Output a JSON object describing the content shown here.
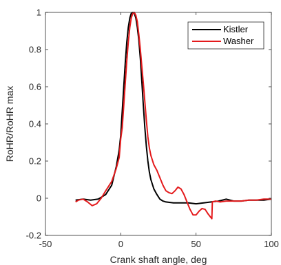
{
  "chart_data": {
    "type": "line",
    "xlabel": "Crank shaft angle, deg",
    "ylabel": "RoHR/RoHR max",
    "xlim": [
      -50,
      100
    ],
    "ylim": [
      -0.2,
      1
    ],
    "xticks": [
      -50,
      0,
      50,
      100
    ],
    "yticks": [
      -0.2,
      0,
      0.2,
      0.4,
      0.6,
      0.8,
      1
    ],
    "x_tick_labels": [
      "-50",
      "0",
      "50",
      "100"
    ],
    "y_tick_labels": [
      "-0.2",
      "0",
      "0.2",
      "0.4",
      "0.6",
      "0.8",
      "1"
    ],
    "grid": false,
    "legend_position": "top-right",
    "series": [
      {
        "name": "Kistler",
        "color": "#000000",
        "points": [
          [
            -30,
            -0.01
          ],
          [
            -25,
            -0.005
          ],
          [
            -20,
            -0.01
          ],
          [
            -15,
            -0.005
          ],
          [
            -10,
            0.02
          ],
          [
            -6,
            0.07
          ],
          [
            -3,
            0.17
          ],
          [
            -1,
            0.26
          ],
          [
            0,
            0.34
          ],
          [
            1,
            0.47
          ],
          [
            2,
            0.6
          ],
          [
            3,
            0.73
          ],
          [
            4,
            0.84
          ],
          [
            5,
            0.92
          ],
          [
            6,
            0.97
          ],
          [
            7,
            0.995
          ],
          [
            8,
            1.0
          ],
          [
            9,
            0.995
          ],
          [
            10,
            0.97
          ],
          [
            11,
            0.92
          ],
          [
            12,
            0.85
          ],
          [
            13,
            0.75
          ],
          [
            14,
            0.63
          ],
          [
            15,
            0.5
          ],
          [
            16,
            0.38
          ],
          [
            17,
            0.28
          ],
          [
            18,
            0.2
          ],
          [
            19,
            0.14
          ],
          [
            20,
            0.1
          ],
          [
            22,
            0.05
          ],
          [
            24,
            0.02
          ],
          [
            26,
            -0.005
          ],
          [
            28,
            -0.015
          ],
          [
            30,
            -0.02
          ],
          [
            35,
            -0.025
          ],
          [
            40,
            -0.025
          ],
          [
            45,
            -0.025
          ],
          [
            50,
            -0.03
          ],
          [
            55,
            -0.025
          ],
          [
            60,
            -0.02
          ],
          [
            65,
            -0.015
          ],
          [
            70,
            -0.005
          ],
          [
            75,
            -0.015
          ],
          [
            80,
            -0.015
          ],
          [
            85,
            -0.01
          ],
          [
            90,
            -0.01
          ],
          [
            95,
            -0.01
          ],
          [
            100,
            -0.005
          ]
        ]
      },
      {
        "name": "Washer",
        "color": "#e41a1c",
        "points": [
          [
            -30,
            -0.02
          ],
          [
            -28,
            -0.01
          ],
          [
            -25,
            -0.005
          ],
          [
            -22,
            -0.02
          ],
          [
            -19,
            -0.04
          ],
          [
            -16,
            -0.03
          ],
          [
            -13,
            0.0
          ],
          [
            -10,
            0.04
          ],
          [
            -6,
            0.09
          ],
          [
            -3,
            0.16
          ],
          [
            -1,
            0.22
          ],
          [
            0,
            0.32
          ],
          [
            1,
            0.38
          ],
          [
            2,
            0.5
          ],
          [
            3,
            0.62
          ],
          [
            4,
            0.74
          ],
          [
            5,
            0.84
          ],
          [
            6,
            0.92
          ],
          [
            7,
            0.97
          ],
          [
            8,
            0.995
          ],
          [
            9,
            1.0
          ],
          [
            10,
            0.985
          ],
          [
            11,
            0.95
          ],
          [
            12,
            0.88
          ],
          [
            13,
            0.8
          ],
          [
            14,
            0.71
          ],
          [
            15,
            0.62
          ],
          [
            16,
            0.52
          ],
          [
            17,
            0.42
          ],
          [
            18,
            0.33
          ],
          [
            19,
            0.27
          ],
          [
            20,
            0.23
          ],
          [
            22,
            0.18
          ],
          [
            24,
            0.15
          ],
          [
            26,
            0.11
          ],
          [
            28,
            0.07
          ],
          [
            30,
            0.04
          ],
          [
            32,
            0.03
          ],
          [
            34,
            0.025
          ],
          [
            36,
            0.04
          ],
          [
            38,
            0.06
          ],
          [
            40,
            0.05
          ],
          [
            42,
            0.02
          ],
          [
            44,
            -0.02
          ],
          [
            46,
            -0.06
          ],
          [
            48,
            -0.09
          ],
          [
            50,
            -0.09
          ],
          [
            52,
            -0.07
          ],
          [
            54,
            -0.055
          ],
          [
            56,
            -0.06
          ],
          [
            58,
            -0.085
          ],
          [
            59.5,
            -0.1
          ],
          [
            60.5,
            -0.11
          ],
          [
            60.8,
            -0.02
          ],
          [
            63,
            -0.015
          ],
          [
            66,
            -0.02
          ],
          [
            70,
            -0.015
          ],
          [
            75,
            -0.015
          ],
          [
            80,
            -0.015
          ],
          [
            85,
            -0.01
          ],
          [
            90,
            -0.01
          ],
          [
            95,
            -0.005
          ],
          [
            100,
            -0.005
          ]
        ]
      }
    ]
  }
}
